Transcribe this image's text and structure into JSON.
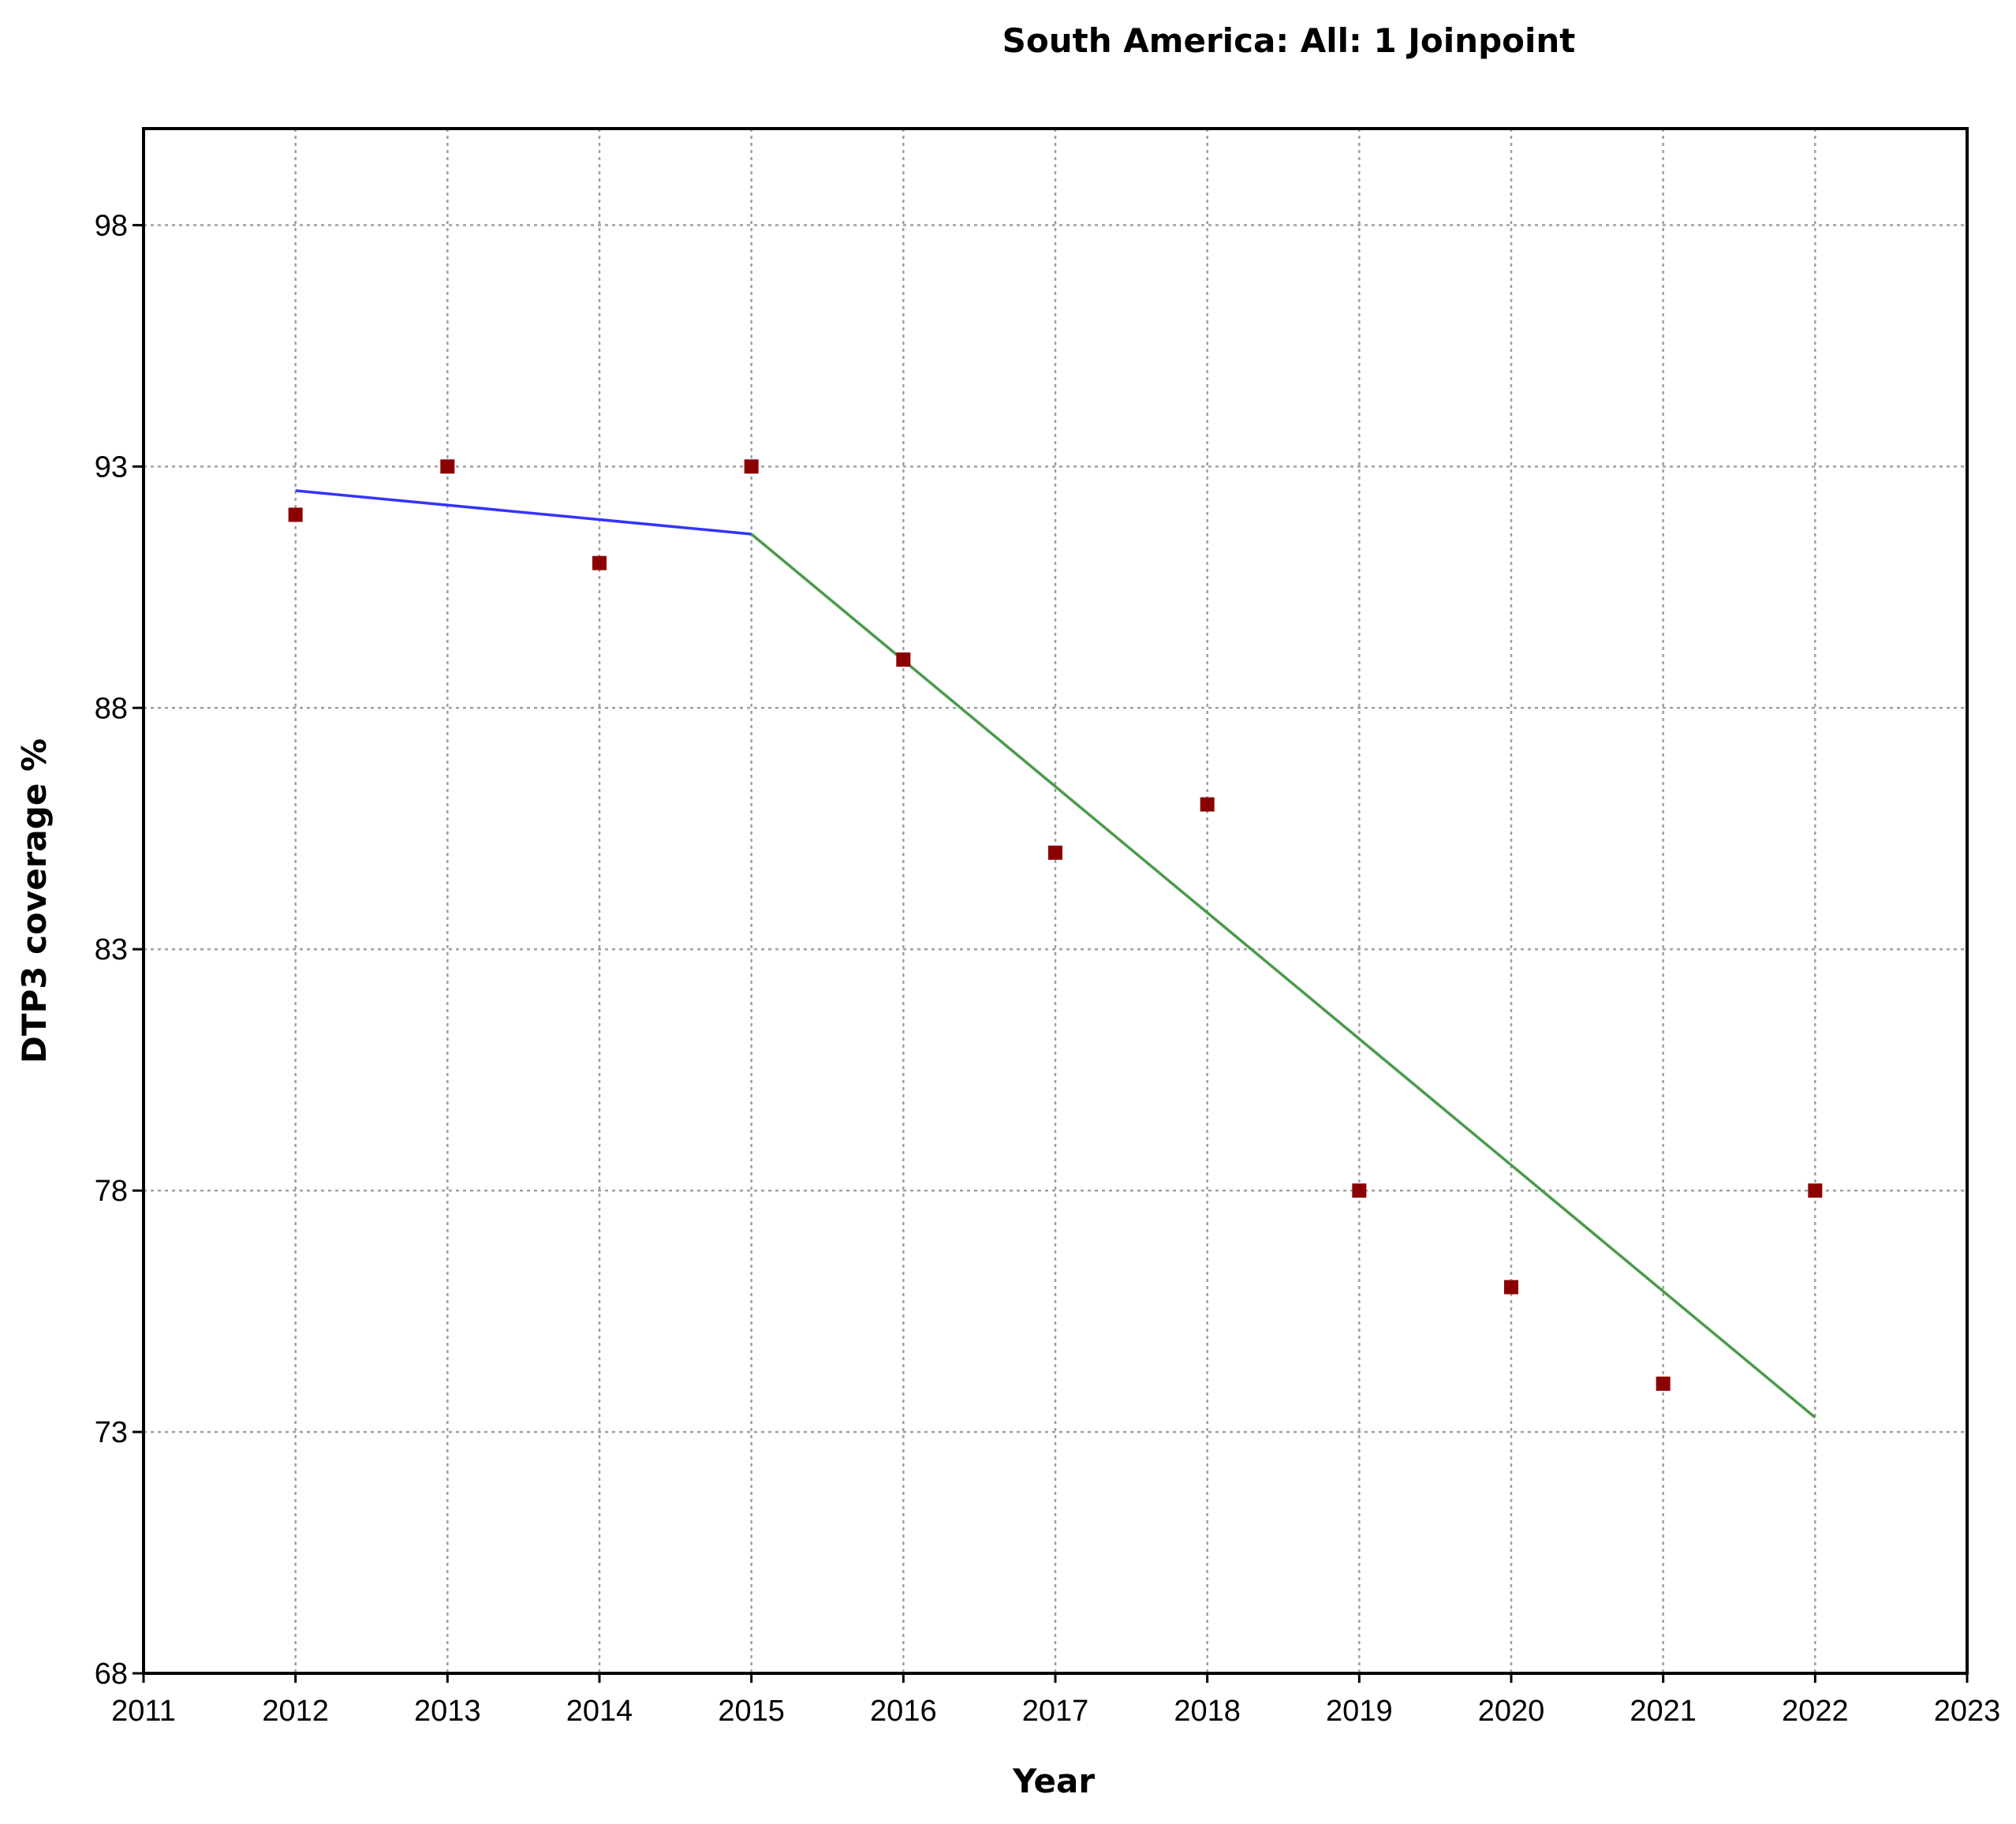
{
  "chart_data": {
    "type": "scatter",
    "title": "South America: All: 1 Joinpoint",
    "xlabel": "Year",
    "ylabel": "DTP3 coverage %",
    "xlim": [
      2011,
      2023
    ],
    "ylim": [
      68,
      100
    ],
    "xticks": [
      2011,
      2012,
      2013,
      2014,
      2015,
      2016,
      2017,
      2018,
      2019,
      2020,
      2021,
      2022,
      2023
    ],
    "yticks": [
      68,
      73,
      78,
      83,
      88,
      93,
      98
    ],
    "grid": true,
    "colors": {
      "points": "#8b0000",
      "segment1": "#3333ff",
      "segment2": "#4a9a4a",
      "grid": "#a0a0a0",
      "frame": "#000000"
    },
    "series": [
      {
        "type": "scatter",
        "x": [
          2012,
          2013,
          2014,
          2015,
          2016,
          2017,
          2018,
          2019,
          2020,
          2021,
          2022
        ],
        "y": [
          92,
          93,
          91,
          93,
          89,
          85,
          86,
          78,
          76,
          74,
          78
        ]
      },
      {
        "type": "line",
        "x": [
          2012,
          2015
        ],
        "y": [
          92.5,
          91.6
        ]
      },
      {
        "type": "line",
        "x": [
          2015,
          2022
        ],
        "y": [
          91.6,
          73.3
        ]
      }
    ]
  }
}
